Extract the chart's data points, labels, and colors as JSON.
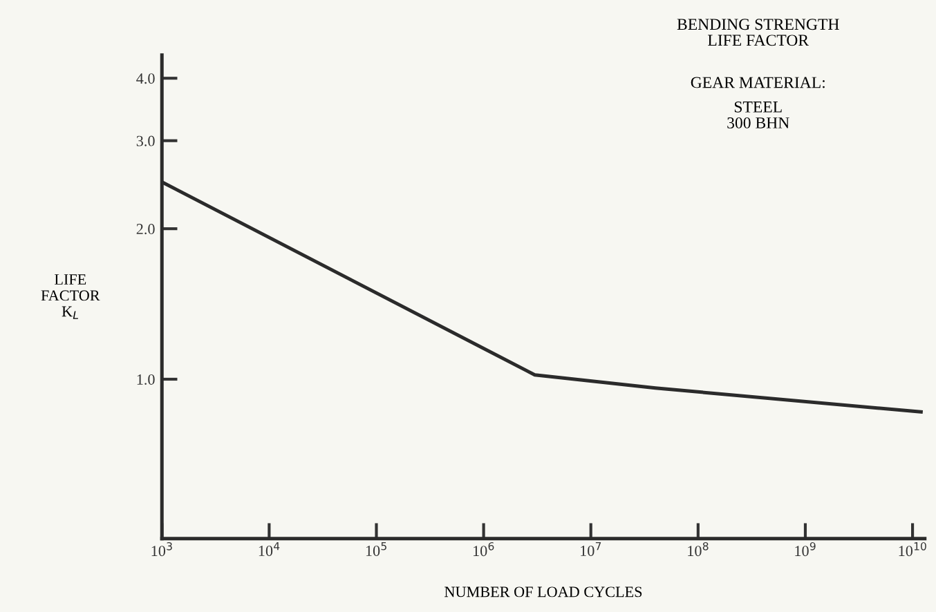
{
  "chart_data": {
    "type": "line",
    "title": "BENDING STRENGTH\nLIFE FACTOR",
    "xlabel": "NUMBER OF LOAD CYCLES",
    "ylabel": "LIFE\nFACTOR\nK$_{L}$",
    "annotations": [
      "GEAR MATERIAL:",
      "STEEL\n300 BHN"
    ],
    "series": [
      {
        "color": "#2b2b2b",
        "x": [
          1000,
          3000000,
          40000000,
          12000000000
        ],
        "values": [
          2.48,
          1.02,
          0.96,
          0.86
        ]
      }
    ],
    "log": "xy",
    "xlim": [
      1000,
      13000000000
    ],
    "ylim": [
      0.48,
      4.45
    ],
    "xticks": [
      {
        "value": 1000,
        "label": "10$^{3}$"
      },
      {
        "value": 10000,
        "label": "10$^{4}$"
      },
      {
        "value": 100000,
        "label": "10$^{5}$"
      },
      {
        "value": 1000000,
        "label": "10$^{6}$"
      },
      {
        "value": 10000000,
        "label": "10$^{7}$"
      },
      {
        "value": 100000000,
        "label": "10$^{8}$"
      },
      {
        "value": 1000000000,
        "label": "10$^{9}$"
      },
      {
        "value": 10000000000,
        "label": "10$^{10}$"
      }
    ],
    "yticks": [
      {
        "value": 1,
        "label": "1.0"
      },
      {
        "value": 2,
        "label": "2.0"
      },
      {
        "value": 3,
        "label": "3.0"
      },
      {
        "value": 4,
        "label": "4.0"
      }
    ],
    "grid": false,
    "legend": false,
    "marker": "none",
    "line_style": "solid"
  }
}
